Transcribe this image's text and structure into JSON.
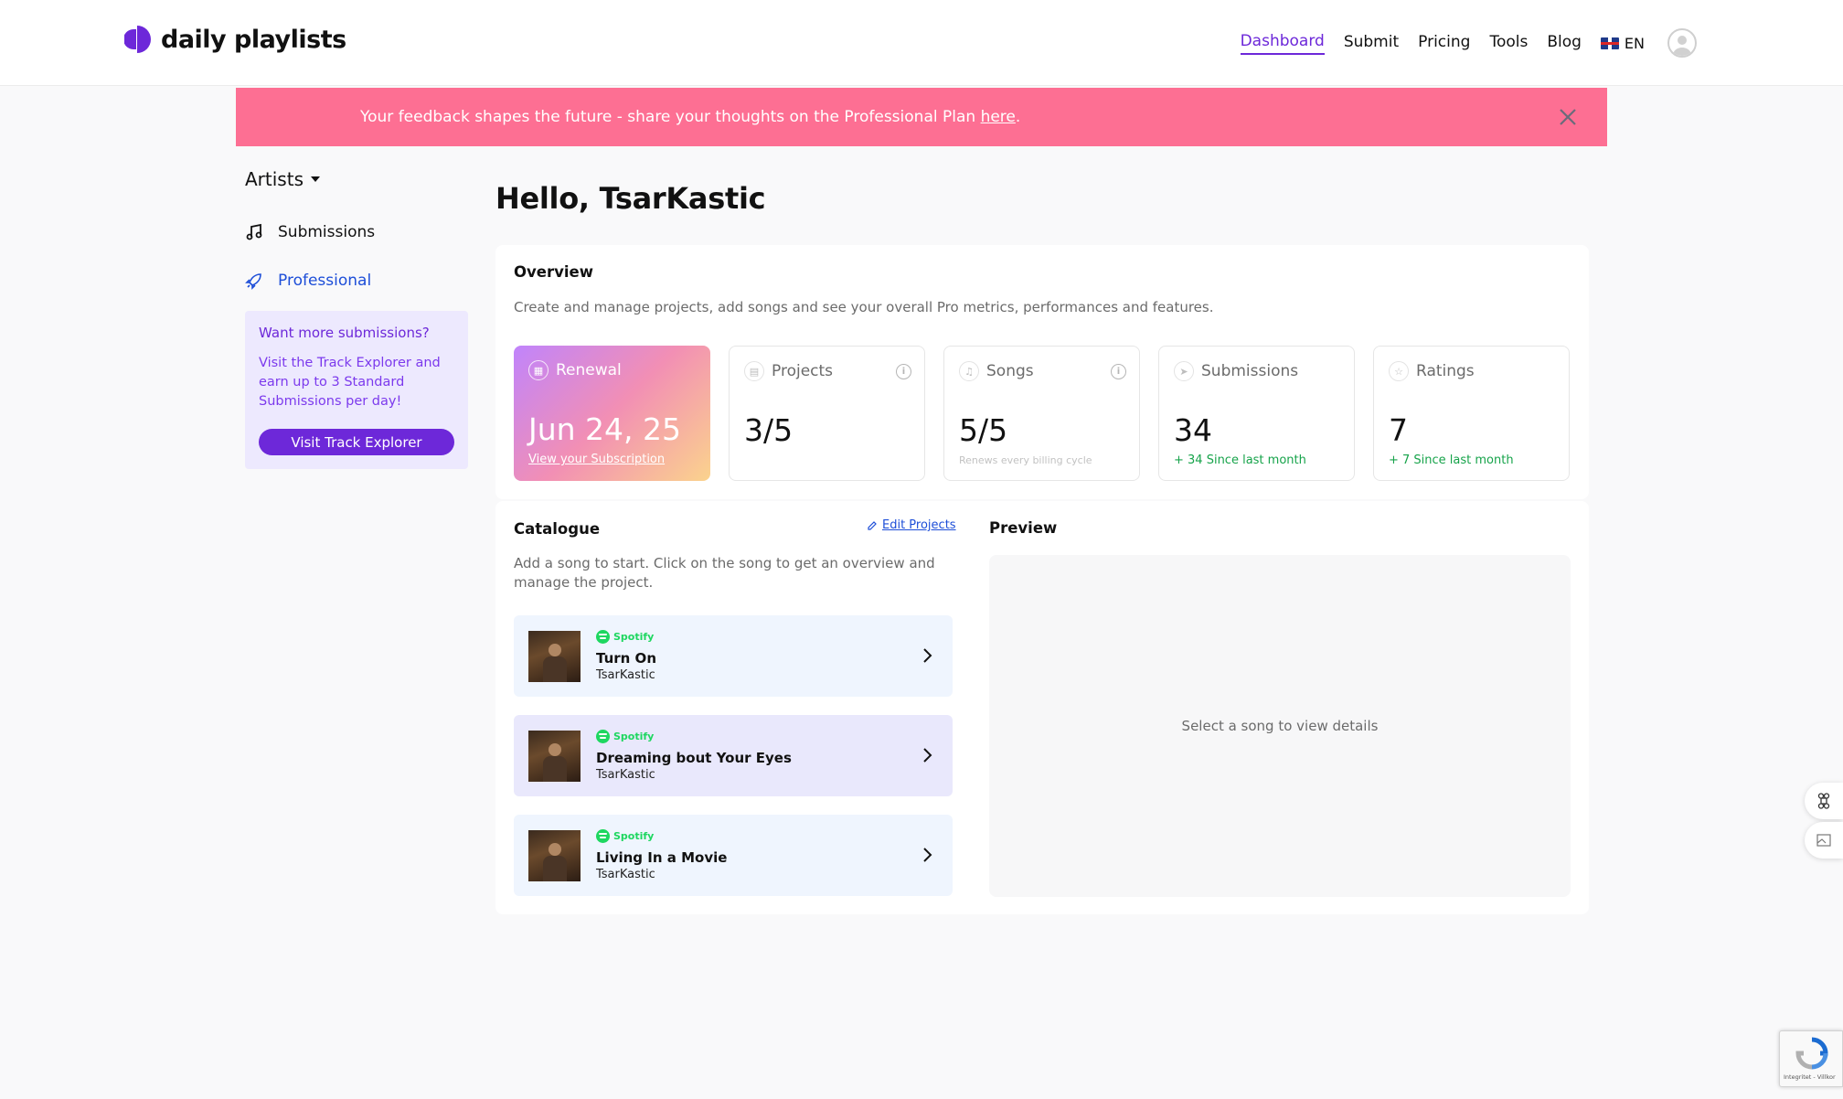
{
  "brand": {
    "name": "daily playlists"
  },
  "nav": {
    "items": [
      {
        "label": "Dashboard",
        "active": true
      },
      {
        "label": "Submit"
      },
      {
        "label": "Pricing"
      },
      {
        "label": "Tools"
      },
      {
        "label": "Blog"
      }
    ],
    "language": "EN"
  },
  "banner": {
    "text": "Your feedback shapes the future - share your thoughts on the Professional Plan ",
    "link": "here",
    "suffix": "."
  },
  "sidebar": {
    "title": "Artists",
    "items": [
      {
        "label": "Submissions"
      },
      {
        "label": "Professional",
        "active": true
      }
    ],
    "promo": {
      "title": "Want more submissions?",
      "body": "Visit the Track Explorer and earn up to 3 Standard Submissions per day!",
      "button": "Visit Track Explorer"
    }
  },
  "main": {
    "greeting": "Hello, TsarKastic",
    "overview": {
      "title": "Overview",
      "description": "Create and manage projects, add songs and see your overall Pro metrics, performances and features.",
      "stats": {
        "renewal": {
          "label": "Renewal",
          "value": "Jun 24, 25",
          "link": "View your Subscription"
        },
        "projects": {
          "label": "Projects",
          "value": "3/5"
        },
        "songs": {
          "label": "Songs",
          "value": "5/5",
          "note": "Renews every billing cycle"
        },
        "submissions": {
          "label": "Submissions",
          "value": "34",
          "note": "+ 34 Since last month"
        },
        "ratings": {
          "label": "Ratings",
          "value": "7",
          "note": "+ 7 Since last month"
        }
      }
    },
    "catalogue": {
      "title": "Catalogue",
      "edit_link": "Edit Projects",
      "description": "Add a song to start. Click on the song to get an overview and manage the project.",
      "songs": [
        {
          "platform": "Spotify",
          "title": "Turn On",
          "artist": "TsarKastic"
        },
        {
          "platform": "Spotify",
          "title": "Dreaming bout Your Eyes",
          "artist": "TsarKastic"
        },
        {
          "platform": "Spotify",
          "title": "Living In a Movie",
          "artist": "TsarKastic"
        }
      ]
    },
    "preview": {
      "title": "Preview",
      "empty_text": "Select a song to view details"
    }
  },
  "recaptcha": {
    "text": "Integritet - Villkor"
  },
  "colors": {
    "accent": "#6d28d9",
    "banner": "#fd6f93",
    "link": "#1d4ed8",
    "positive": "#16a34a",
    "spotify": "#1ed760"
  }
}
